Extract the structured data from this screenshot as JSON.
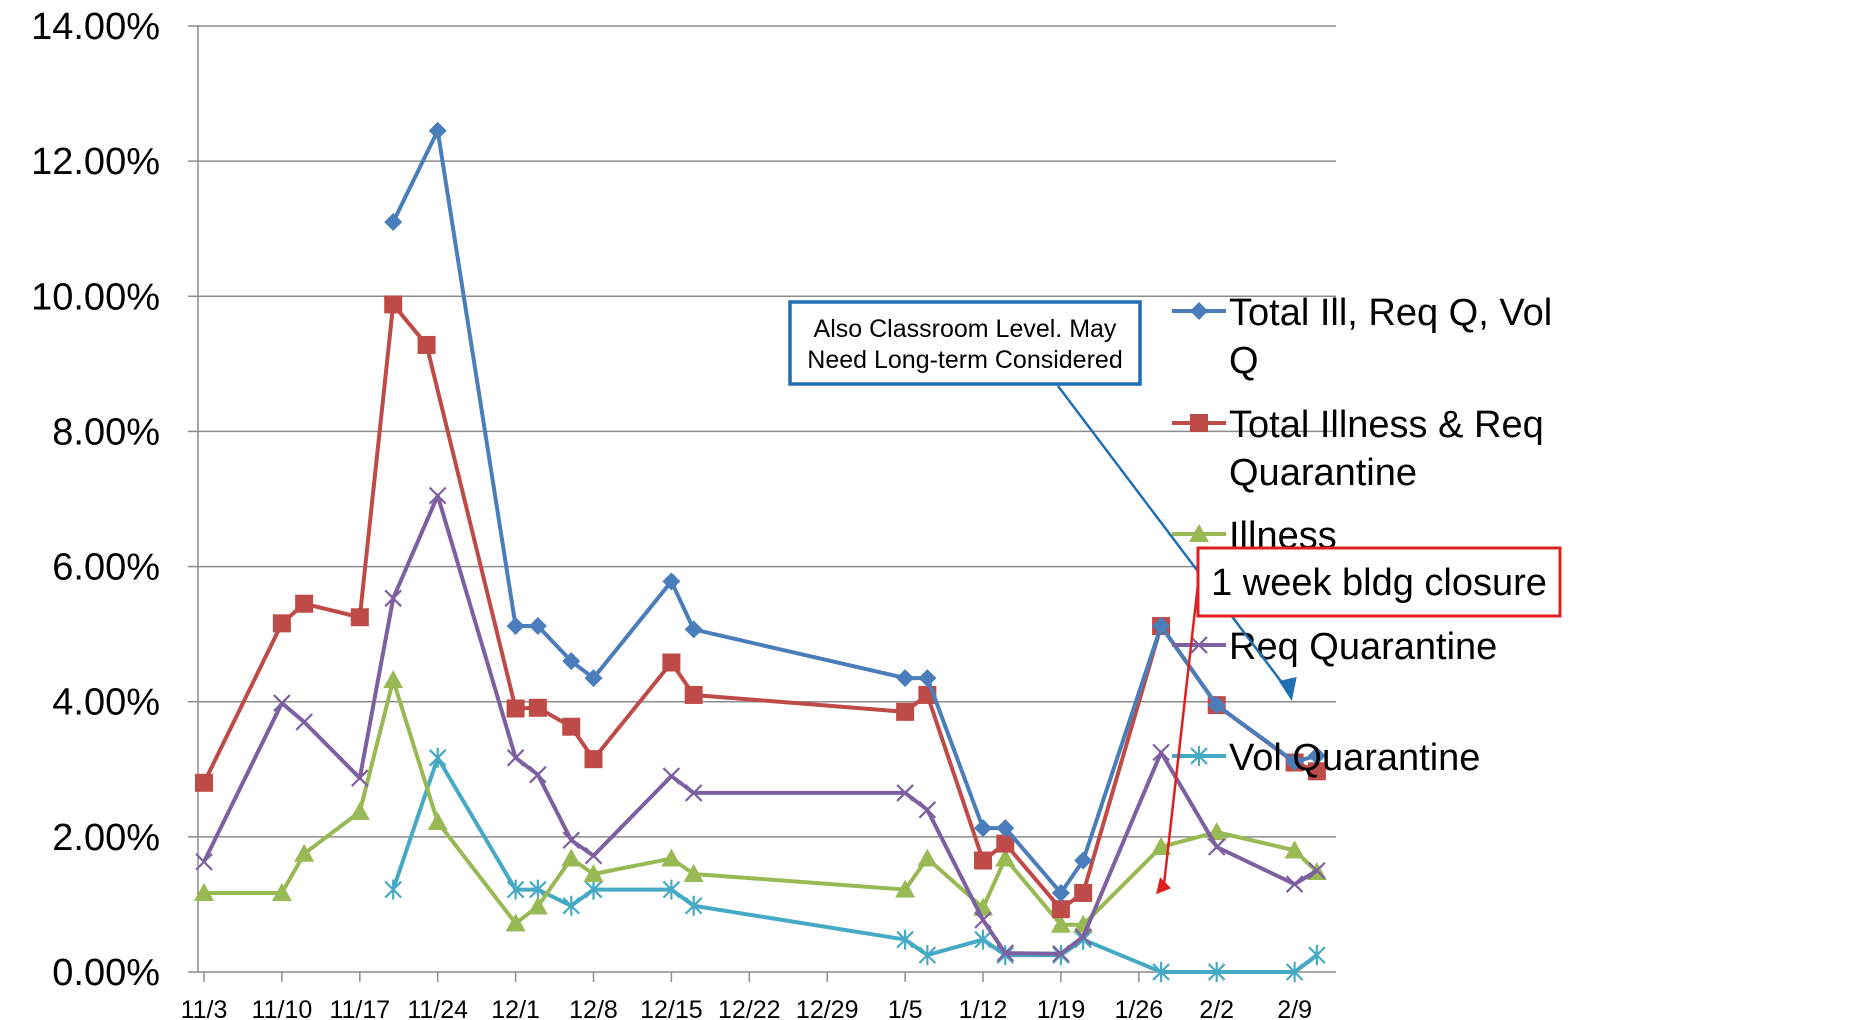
{
  "chart_data": {
    "type": "line",
    "title": "",
    "xlabel": "",
    "ylabel": "",
    "ylim": [
      0,
      0.14
    ],
    "yticks": [
      "0.00%",
      "2.00%",
      "4.00%",
      "6.00%",
      "8.00%",
      "10.00%",
      "12.00%",
      "14.00%"
    ],
    "xrange": [
      "11/3",
      "2/12"
    ],
    "xticks": [
      "11/3",
      "11/10",
      "11/17",
      "11/24",
      "12/1",
      "12/8",
      "12/15",
      "12/22",
      "12/29",
      "1/5",
      "1/12",
      "1/19",
      "1/26",
      "2/2",
      "2/9"
    ],
    "grid": "horizontal",
    "legend_position": "right",
    "series": [
      {
        "name": "Total Ill, Req Q, Vol Q",
        "color": "#4a7ebb",
        "marker": "diamond",
        "points": [
          [
            "11/20",
            0.111
          ],
          [
            "11/24",
            0.1245
          ],
          [
            "12/1",
            0.0512
          ],
          [
            "12/3",
            0.0512
          ],
          [
            "12/6",
            0.046
          ],
          [
            "12/8",
            0.0435
          ],
          [
            "12/15",
            0.0578
          ],
          [
            "12/17",
            0.0507
          ],
          [
            "1/5",
            0.0435
          ],
          [
            "1/7",
            0.0435
          ],
          [
            "1/12",
            0.0213
          ],
          [
            "1/14",
            0.0213
          ],
          [
            "1/19",
            0.0117
          ],
          [
            "1/21",
            0.0165
          ],
          [
            "1/28",
            0.0512
          ],
          [
            "2/2",
            0.0395
          ],
          [
            "2/9",
            0.0311
          ],
          [
            "2/11",
            0.032
          ]
        ]
      },
      {
        "name": "Total Illness & Req Quarantine",
        "color": "#be4b48",
        "marker": "square",
        "points": [
          [
            "11/3",
            0.028
          ],
          [
            "11/10",
            0.0516
          ],
          [
            "11/12",
            0.0545
          ],
          [
            "11/17",
            0.0525
          ],
          [
            "11/20",
            0.0988
          ],
          [
            "11/23",
            0.0928
          ],
          [
            "12/1",
            0.039
          ],
          [
            "12/3",
            0.0391
          ],
          [
            "12/6",
            0.0363
          ],
          [
            "12/8",
            0.0315
          ],
          [
            "12/15",
            0.0458
          ],
          [
            "12/17",
            0.041
          ],
          [
            "1/5",
            0.0385
          ],
          [
            "1/7",
            0.041
          ],
          [
            "1/12",
            0.0165
          ],
          [
            "1/14",
            0.019
          ],
          [
            "1/19",
            0.0093
          ],
          [
            "1/21",
            0.0117
          ],
          [
            "1/28",
            0.0512
          ],
          [
            "2/2",
            0.0395
          ],
          [
            "2/9",
            0.031
          ],
          [
            "2/11",
            0.0297
          ]
        ]
      },
      {
        "name": "Illness",
        "color": "#98b954",
        "marker": "triangle",
        "points": [
          [
            "11/3",
            0.0117
          ],
          [
            "11/10",
            0.0117
          ],
          [
            "11/12",
            0.0175
          ],
          [
            "11/17",
            0.0237
          ],
          [
            "11/20",
            0.0432
          ],
          [
            "11/24",
            0.0222
          ],
          [
            "12/1",
            0.0072
          ],
          [
            "12/3",
            0.0097
          ],
          [
            "12/6",
            0.0168
          ],
          [
            "12/8",
            0.0145
          ],
          [
            "12/15",
            0.0168
          ],
          [
            "12/17",
            0.0145
          ],
          [
            "1/5",
            0.0122
          ],
          [
            "1/7",
            0.0168
          ],
          [
            "1/12",
            0.0095
          ],
          [
            "1/14",
            0.0168
          ],
          [
            "1/19",
            0.007
          ],
          [
            "1/21",
            0.007
          ],
          [
            "1/28",
            0.0185
          ],
          [
            "2/2",
            0.0207
          ],
          [
            "2/9",
            0.018
          ],
          [
            "2/11",
            0.0148
          ]
        ]
      },
      {
        "name": "Req Quarantine",
        "color": "#7d60a0",
        "marker": "x",
        "points": [
          [
            "11/3",
            0.0163
          ],
          [
            "11/10",
            0.0398
          ],
          [
            "11/12",
            0.037
          ],
          [
            "11/17",
            0.0287
          ],
          [
            "11/20",
            0.0553
          ],
          [
            "11/24",
            0.0705
          ],
          [
            "12/1",
            0.0317
          ],
          [
            "12/3",
            0.0292
          ],
          [
            "12/6",
            0.0195
          ],
          [
            "12/8",
            0.0172
          ],
          [
            "12/15",
            0.029
          ],
          [
            "12/17",
            0.0265
          ],
          [
            "1/5",
            0.0265
          ],
          [
            "1/7",
            0.024
          ],
          [
            "1/12",
            0.0077
          ],
          [
            "1/14",
            0.0028
          ],
          [
            "1/19",
            0.0027
          ],
          [
            "1/21",
            0.0052
          ],
          [
            "1/28",
            0.0325
          ],
          [
            "2/2",
            0.0185
          ],
          [
            "2/9",
            0.013
          ],
          [
            "2/11",
            0.015
          ]
        ]
      },
      {
        "name": "Vol Quarantine",
        "color": "#46aac4",
        "marker": "asterisk",
        "points": [
          [
            "11/20",
            0.0122
          ],
          [
            "11/24",
            0.0317
          ],
          [
            "12/1",
            0.0122
          ],
          [
            "12/3",
            0.0122
          ],
          [
            "12/6",
            0.0098
          ],
          [
            "12/8",
            0.0122
          ],
          [
            "12/15",
            0.0122
          ],
          [
            "12/17",
            0.0098
          ],
          [
            "1/5",
            0.0048
          ],
          [
            "1/7",
            0.0025
          ],
          [
            "1/12",
            0.0048
          ],
          [
            "1/14",
            0.0025
          ],
          [
            "1/19",
            0.0025
          ],
          [
            "1/21",
            0.0048
          ],
          [
            "1/28",
            0.0
          ],
          [
            "2/2",
            0.0
          ],
          [
            "2/9",
            0.0
          ],
          [
            "2/11",
            0.0025
          ]
        ]
      }
    ],
    "annotations": [
      {
        "text_lines": [
          "Also Classroom Level. May",
          "Need Long-term Considered"
        ],
        "border_color": "#1f6fb4",
        "arrow_color": "#1f6fb4",
        "arrow_target": [
          "2/10",
          0.041
        ]
      },
      {
        "text": "1 week bldg closure",
        "border_color": "#e02020",
        "arrow_color": "#e02020",
        "arrow_target": [
          "2/12",
          0.034
        ]
      }
    ]
  }
}
